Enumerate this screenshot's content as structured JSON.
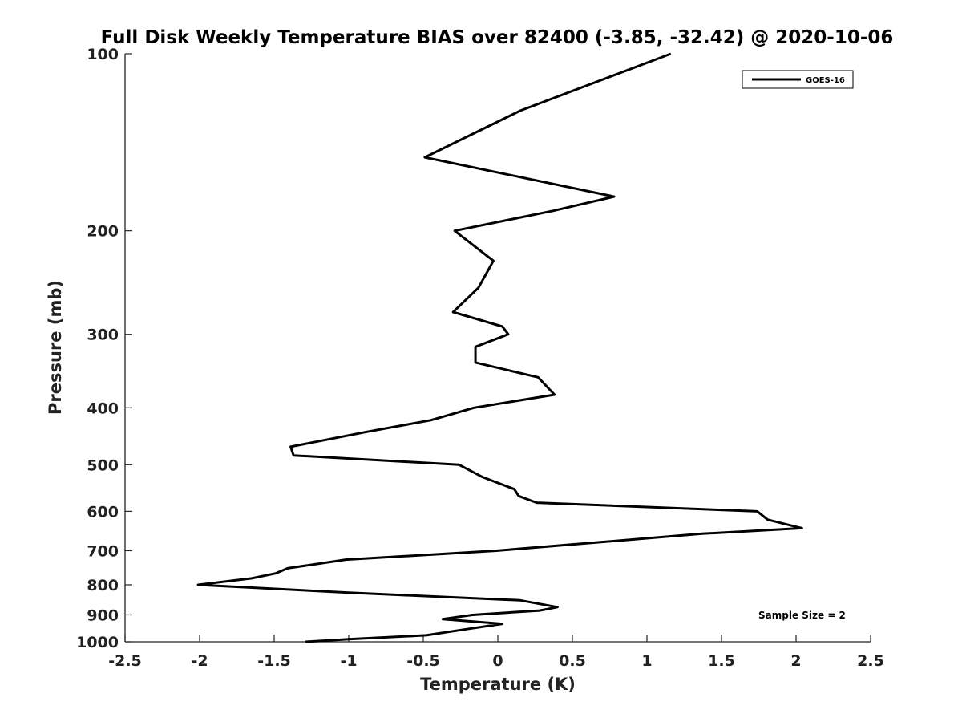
{
  "chart_data": {
    "type": "line",
    "title": "Full Disk Weekly Temperature BIAS over 82400 (-3.85, -32.42) @ 2020-10-06",
    "xlabel": "Temperature (K)",
    "ylabel": "Pressure (mb)",
    "xlim": [
      -2.5,
      2.5
    ],
    "ylim": [
      1000,
      100
    ],
    "y_scale": "log",
    "y_reversed": true,
    "x_ticks": [
      "-2.5",
      "-2",
      "-1.5",
      "-1",
      "-0.5",
      "0",
      "0.5",
      "1",
      "1.5",
      "2",
      "2.5"
    ],
    "x_tick_values": [
      -2.5,
      -2,
      -1.5,
      -1,
      -0.5,
      0,
      0.5,
      1,
      1.5,
      2,
      2.5
    ],
    "y_ticks": [
      "100",
      "200",
      "300",
      "400",
      "500",
      "600",
      "700",
      "800",
      "900",
      "1000"
    ],
    "y_tick_values": [
      100,
      200,
      300,
      400,
      500,
      600,
      700,
      800,
      900,
      1000
    ],
    "grid": false,
    "legend_position": "top-right",
    "line_color": "#000000",
    "annotation": "Sample Size = 2",
    "series": [
      {
        "name": "GOES-16",
        "points": [
          {
            "x": 1.16,
            "y": 100
          },
          {
            "x": 0.15,
            "y": 125
          },
          {
            "x": -0.49,
            "y": 150
          },
          {
            "x": 0.78,
            "y": 175
          },
          {
            "x": 0.37,
            "y": 185
          },
          {
            "x": -0.29,
            "y": 200
          },
          {
            "x": -0.03,
            "y": 225
          },
          {
            "x": -0.13,
            "y": 250
          },
          {
            "x": -0.3,
            "y": 275
          },
          {
            "x": 0.03,
            "y": 291
          },
          {
            "x": 0.07,
            "y": 300
          },
          {
            "x": -0.15,
            "y": 315
          },
          {
            "x": -0.15,
            "y": 335
          },
          {
            "x": 0.27,
            "y": 355
          },
          {
            "x": 0.38,
            "y": 380
          },
          {
            "x": -0.16,
            "y": 400
          },
          {
            "x": -0.45,
            "y": 420
          },
          {
            "x": -0.89,
            "y": 440
          },
          {
            "x": -1.39,
            "y": 466
          },
          {
            "x": -1.37,
            "y": 482
          },
          {
            "x": -0.26,
            "y": 500
          },
          {
            "x": -0.1,
            "y": 525
          },
          {
            "x": 0.11,
            "y": 550
          },
          {
            "x": 0.14,
            "y": 565
          },
          {
            "x": 0.26,
            "y": 580
          },
          {
            "x": 1.74,
            "y": 600
          },
          {
            "x": 1.81,
            "y": 620
          },
          {
            "x": 2.04,
            "y": 641
          },
          {
            "x": 1.37,
            "y": 655
          },
          {
            "x": -0.01,
            "y": 700
          },
          {
            "x": -1.02,
            "y": 725
          },
          {
            "x": -1.41,
            "y": 750
          },
          {
            "x": -1.49,
            "y": 765
          },
          {
            "x": -1.65,
            "y": 780
          },
          {
            "x": -2.01,
            "y": 800
          },
          {
            "x": -1.0,
            "y": 825
          },
          {
            "x": 0.15,
            "y": 850
          },
          {
            "x": 0.4,
            "y": 873
          },
          {
            "x": 0.28,
            "y": 885
          },
          {
            "x": -0.17,
            "y": 900
          },
          {
            "x": -0.37,
            "y": 915
          },
          {
            "x": 0.03,
            "y": 932
          },
          {
            "x": -0.19,
            "y": 950
          },
          {
            "x": -0.48,
            "y": 975
          },
          {
            "x": -1.0,
            "y": 990
          },
          {
            "x": -1.29,
            "y": 1000
          }
        ]
      }
    ]
  }
}
